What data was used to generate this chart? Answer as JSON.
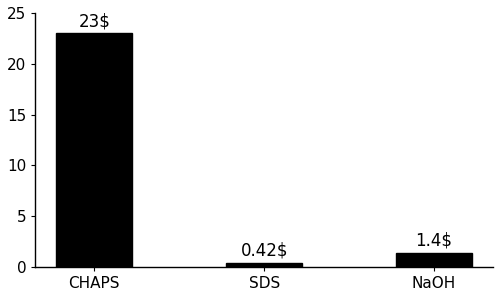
{
  "categories": [
    "CHAPS",
    "SDS",
    "NaOH"
  ],
  "values": [
    23,
    0.42,
    1.4
  ],
  "labels": [
    "23$",
    "0.42$",
    "1.4$"
  ],
  "bar_color": "#000000",
  "bar_width": 0.45,
  "ylim": [
    0,
    25
  ],
  "yticks": [
    0,
    5,
    10,
    15,
    20,
    25
  ],
  "background_color": "#ffffff",
  "spine_color": "#000000",
  "tick_fontsize": 11,
  "annotation_fontsize": 12
}
